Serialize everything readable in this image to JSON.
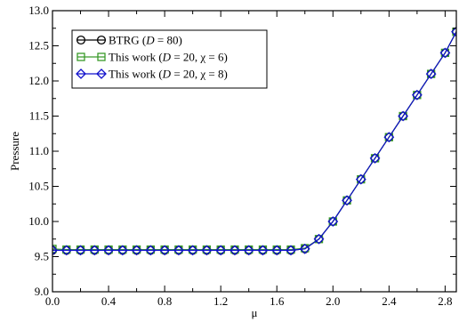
{
  "chart_data": {
    "type": "line",
    "xlabel": "μ",
    "ylabel": "Pressure",
    "xlim": [
      0.0,
      2.88
    ],
    "ylim": [
      9.0,
      13.0
    ],
    "xticks": [
      "0.0",
      "0.4",
      "0.8",
      "1.2",
      "1.6",
      "2.0",
      "2.4",
      "2.8"
    ],
    "yticks": [
      "9.0",
      "9.5",
      "10.0",
      "10.5",
      "11.0",
      "11.5",
      "12.0",
      "12.5",
      "13.0"
    ],
    "legend_position": "top-left",
    "x": [
      0.0,
      0.1,
      0.2,
      0.3,
      0.4,
      0.5,
      0.6,
      0.7,
      0.8,
      0.9,
      1.0,
      1.1,
      1.2,
      1.3,
      1.4,
      1.5,
      1.6,
      1.7,
      1.8,
      1.9,
      2.0,
      2.1,
      2.2,
      2.3,
      2.4,
      2.5,
      2.6,
      2.7,
      2.8,
      2.88
    ],
    "series": [
      {
        "name_parts": [
          "BTRG (",
          "D",
          " = 80)"
        ],
        "color": "#000000",
        "marker": "circle",
        "values": [
          9.59,
          9.59,
          9.59,
          9.59,
          9.59,
          9.59,
          9.59,
          9.59,
          9.59,
          9.59,
          9.59,
          9.59,
          9.59,
          9.59,
          9.59,
          9.59,
          9.59,
          9.59,
          9.61,
          9.75,
          10.0,
          10.3,
          10.6,
          10.9,
          11.2,
          11.5,
          11.8,
          12.1,
          12.4,
          12.7
        ]
      },
      {
        "name_parts": [
          "This work (",
          "D",
          " = 20, χ = 6)"
        ],
        "color": "#3a9a2a",
        "marker": "square",
        "values": [
          9.61,
          9.6,
          9.6,
          9.6,
          9.6,
          9.6,
          9.6,
          9.6,
          9.6,
          9.6,
          9.6,
          9.6,
          9.6,
          9.6,
          9.6,
          9.6,
          9.6,
          9.6,
          9.62,
          9.75,
          10.0,
          10.3,
          10.6,
          10.9,
          11.2,
          11.5,
          11.8,
          12.1,
          12.4,
          12.7
        ]
      },
      {
        "name_parts": [
          "This work (",
          "D",
          " = 20, χ = 8)"
        ],
        "color": "#1010cc",
        "marker": "diamond",
        "values": [
          9.59,
          9.59,
          9.59,
          9.59,
          9.59,
          9.59,
          9.59,
          9.59,
          9.59,
          9.59,
          9.59,
          9.59,
          9.59,
          9.59,
          9.59,
          9.59,
          9.59,
          9.59,
          9.61,
          9.75,
          10.0,
          10.3,
          10.6,
          10.9,
          11.2,
          11.5,
          11.8,
          12.1,
          12.4,
          12.7
        ]
      }
    ]
  }
}
